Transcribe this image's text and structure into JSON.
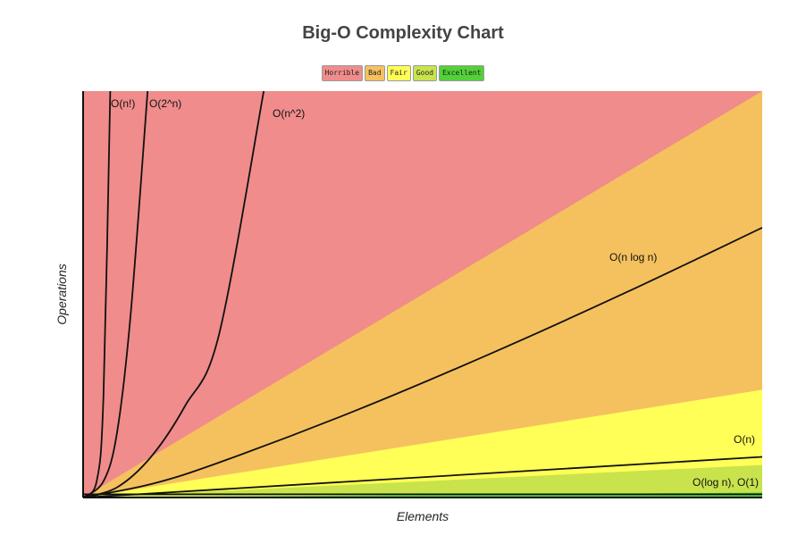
{
  "chart_data": {
    "type": "area",
    "title": "Big-O Complexity Chart",
    "xlabel": "Elements",
    "ylabel": "Operations",
    "legend": [
      {
        "label": "Horrible",
        "color": "#f08c8c"
      },
      {
        "label": "Bad",
        "color": "#f5c15f"
      },
      {
        "label": "Fair",
        "color": "#ffff57"
      },
      {
        "label": "Good",
        "color": "#c8e34c"
      },
      {
        "label": "Excellent",
        "color": "#53d138"
      }
    ],
    "xlim": [
      0,
      100
    ],
    "ylim": [
      0,
      1000
    ],
    "regions": [
      {
        "name": "Horrible",
        "color": "#f08c8c",
        "boundary": [
          [
            0,
            0
          ],
          [
            100,
            1000
          ]
        ]
      },
      {
        "name": "Bad",
        "color": "#f5c15f",
        "boundary": [
          [
            0,
            0
          ],
          [
            100,
            1000
          ]
        ]
      },
      {
        "name": "Fair",
        "color": "#ffff57",
        "boundary": [
          [
            0,
            0
          ],
          [
            100,
            265
          ]
        ]
      },
      {
        "name": "Good",
        "color": "#c8e34c",
        "boundary": [
          [
            0,
            0
          ],
          [
            100,
            80
          ]
        ]
      },
      {
        "name": "Excellent",
        "color": "#53d138",
        "boundary": [
          [
            0,
            0
          ],
          [
            100,
            12
          ]
        ]
      }
    ],
    "series": [
      {
        "name": "O(n!)",
        "x": [
          0,
          2,
          3,
          4
        ],
        "values": [
          0,
          40,
          250,
          1000
        ]
      },
      {
        "name": "O(2^n)",
        "x": [
          0,
          3,
          5,
          7,
          9.5
        ],
        "values": [
          0,
          40,
          160,
          450,
          1000
        ]
      },
      {
        "name": "O(n^2)",
        "x": [
          0,
          5,
          10,
          15,
          20,
          26.6
        ],
        "values": [
          0,
          25,
          100,
          225,
          400,
          1000
        ]
      },
      {
        "name": "O(n log n)",
        "x": [
          0,
          10,
          20,
          40,
          60,
          80,
          100
        ],
        "values": [
          0,
          33,
          86,
          213,
          354,
          505,
          664
        ]
      },
      {
        "name": "O(n)",
        "x": [
          0,
          100
        ],
        "values": [
          0,
          100
        ]
      },
      {
        "name": "O(log n), O(1)",
        "x": [
          0,
          100
        ],
        "values": [
          8,
          8
        ]
      }
    ]
  }
}
